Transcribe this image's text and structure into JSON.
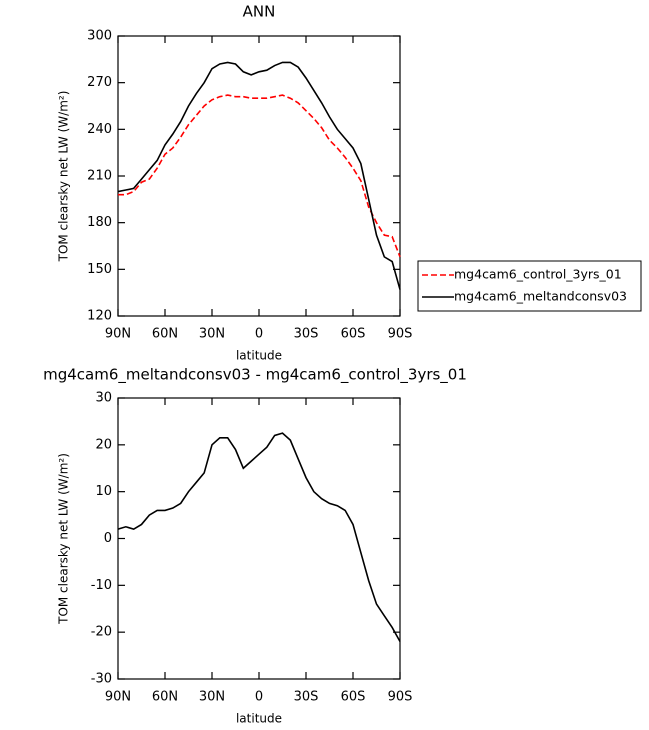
{
  "chart_data": [
    {
      "type": "line",
      "title": "ANN",
      "xlabel": "latitude",
      "ylabel": "TOM clearsky net LW (W/m²)",
      "x": [
        90,
        85,
        80,
        75,
        70,
        65,
        60,
        55,
        50,
        45,
        40,
        35,
        30,
        25,
        20,
        15,
        10,
        5,
        0,
        -5,
        -10,
        -15,
        -20,
        -25,
        -30,
        -35,
        -40,
        -45,
        -50,
        -55,
        -60,
        -65,
        -70,
        -75,
        -80,
        -85,
        -90
      ],
      "xlim": [
        90,
        -90
      ],
      "xticks": [
        {
          "value": 90,
          "label": "90N"
        },
        {
          "value": 60,
          "label": "60N"
        },
        {
          "value": 30,
          "label": "30N"
        },
        0,
        {
          "value": -30,
          "label": "30S"
        },
        {
          "value": -60,
          "label": "60S"
        },
        {
          "value": -90,
          "label": "90S"
        }
      ],
      "ylim": [
        120,
        300
      ],
      "yticks": [
        120,
        150,
        180,
        210,
        240,
        270,
        300
      ],
      "legend": "right",
      "series": [
        {
          "name": "mg4cam6_control_3yrs_01",
          "color": "#ff0000",
          "style": "dashed",
          "values": [
            198,
            198,
            200,
            206,
            208,
            215,
            224,
            228,
            235,
            243,
            249,
            255,
            259,
            261,
            262,
            261,
            261,
            260,
            260,
            260,
            261,
            262,
            260,
            257,
            252,
            247,
            241,
            233,
            228,
            222,
            215,
            207,
            190,
            180,
            172,
            171,
            158
          ]
        },
        {
          "name": "mg4cam6_meltandconsv03",
          "color": "#000000",
          "style": "solid",
          "values": [
            200,
            201,
            202,
            208,
            214,
            220,
            230,
            237,
            245,
            255,
            263,
            270,
            279,
            282,
            283,
            282,
            277,
            275,
            277,
            278,
            281,
            283,
            283,
            280,
            273,
            265,
            257,
            248,
            240,
            234,
            228,
            218,
            195,
            172,
            158,
            155,
            137
          ]
        }
      ]
    },
    {
      "type": "line",
      "title": "mg4cam6_meltandconsv03 - mg4cam6_control_3yrs_01",
      "xlabel": "latitude",
      "ylabel": "TOM clearsky net LW (W/m²)",
      "x": [
        90,
        85,
        80,
        75,
        70,
        65,
        60,
        55,
        50,
        45,
        40,
        35,
        30,
        25,
        20,
        15,
        10,
        5,
        0,
        -5,
        -10,
        -15,
        -20,
        -25,
        -30,
        -35,
        -40,
        -45,
        -50,
        -55,
        -60,
        -65,
        -70,
        -75,
        -80,
        -85,
        -90
      ],
      "xlim": [
        90,
        -90
      ],
      "xticks": [
        {
          "value": 90,
          "label": "90N"
        },
        {
          "value": 60,
          "label": "60N"
        },
        {
          "value": 30,
          "label": "30N"
        },
        0,
        {
          "value": -30,
          "label": "30S"
        },
        {
          "value": -60,
          "label": "60S"
        },
        {
          "value": -90,
          "label": "90S"
        }
      ],
      "ylim": [
        -30,
        30
      ],
      "yticks": [
        -30,
        -20,
        -10,
        0,
        10,
        20,
        30
      ],
      "series": [
        {
          "color": "#000000",
          "style": "solid",
          "values": [
            2,
            2.5,
            2,
            3,
            5,
            6,
            6,
            6.5,
            7.5,
            10,
            12,
            14,
            20,
            21.5,
            21.5,
            19,
            15,
            16.5,
            18,
            19.5,
            22,
            22.5,
            21,
            17,
            13,
            10,
            8.5,
            7.5,
            7,
            6,
            3,
            -3,
            -9,
            -14,
            -16.5,
            -19,
            -22
          ]
        }
      ]
    }
  ]
}
